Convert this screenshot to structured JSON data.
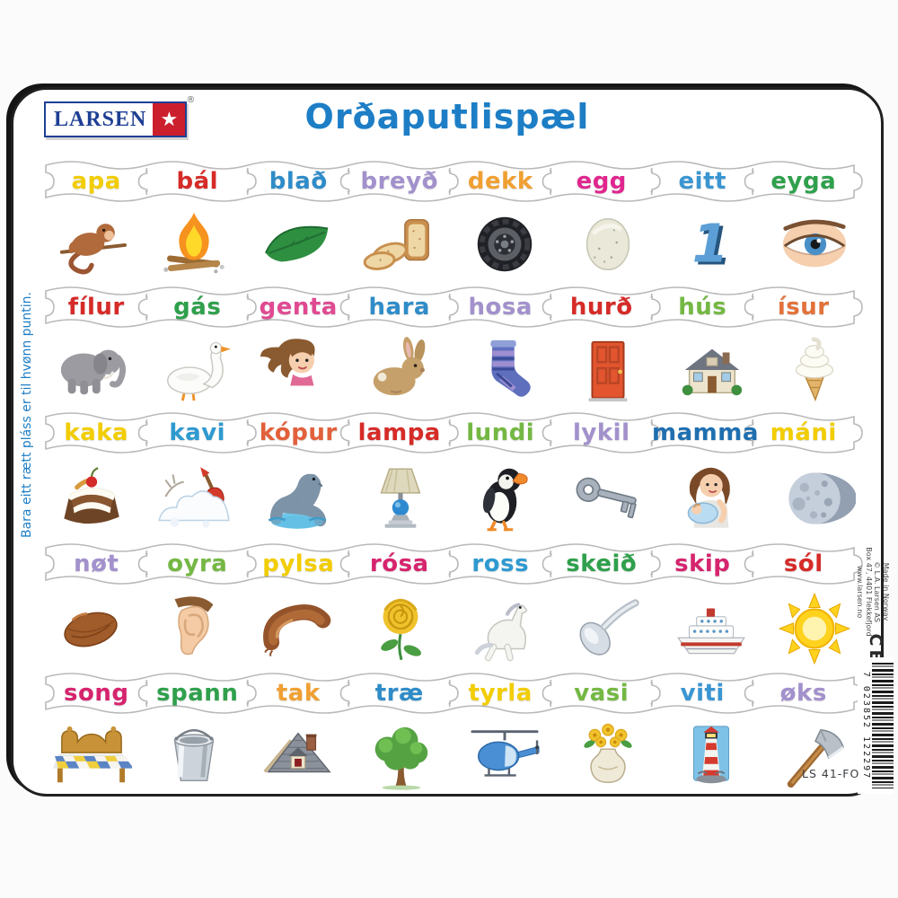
{
  "header": {
    "logo_text": "LARSEN",
    "logo_star": "★",
    "logo_reg": "®",
    "title": "Orðaputlispæl"
  },
  "side_left": {
    "text": "Bara eitt rætt pláss er til hvønn puntin."
  },
  "side_right": {
    "lines": [
      "Made in Norway",
      "© L.A. Larsen AS",
      "Box 47, 4401 Flekkefjord",
      "www.larsen.no"
    ],
    "ce": "CE",
    "barcode": "7 023852 122297",
    "product_code": "LS 41-FO"
  },
  "colors": {
    "title_blue": "#1d7ec6",
    "instruction_blue": "#1d7ec6",
    "logo_blue": "#1d3f94",
    "logo_red": "#cc1f2d",
    "board_border": "#202020",
    "piece_outline": "#b9b9b9"
  },
  "rows": [
    {
      "pieces": [
        {
          "word": "apa",
          "color": "#f2cd00",
          "icon": "monkey-icon"
        },
        {
          "word": "bál",
          "color": "#d62b28",
          "icon": "fire-icon"
        },
        {
          "word": "blað",
          "color": "#2f8cc8",
          "icon": "leaf-icon"
        },
        {
          "word": "breyð",
          "color": "#a291cc",
          "icon": "bread-icon"
        },
        {
          "word": "dekk",
          "color": "#f0a032",
          "icon": "tire-icon"
        },
        {
          "word": "egg",
          "color": "#e0268e",
          "icon": "egg-icon"
        },
        {
          "word": "eitt",
          "color": "#3a96d2",
          "icon": "one-icon"
        },
        {
          "word": "eyga",
          "color": "#2fa04c",
          "icon": "eye-icon"
        }
      ]
    },
    {
      "pieces": [
        {
          "word": "fílur",
          "color": "#d62b28",
          "icon": "elephant-icon"
        },
        {
          "word": "gás",
          "color": "#2fa04c",
          "icon": "goose-icon"
        },
        {
          "word": "genta",
          "color": "#e04a92",
          "icon": "girl-icon"
        },
        {
          "word": "hara",
          "color": "#2f8cc8",
          "icon": "rabbit-icon"
        },
        {
          "word": "hosa",
          "color": "#a291cc",
          "icon": "sock-icon"
        },
        {
          "word": "hurð",
          "color": "#d62b28",
          "icon": "door-icon"
        },
        {
          "word": "hús",
          "color": "#74b843",
          "icon": "house-icon"
        },
        {
          "word": "ísur",
          "color": "#e2713a",
          "icon": "icecream-icon"
        }
      ]
    },
    {
      "pieces": [
        {
          "word": "kaka",
          "color": "#f2cd00",
          "icon": "cake-icon"
        },
        {
          "word": "kavi",
          "color": "#2f9ad0",
          "icon": "snow-shovel-icon"
        },
        {
          "word": "kópur",
          "color": "#e2603a",
          "icon": "seal-icon"
        },
        {
          "word": "lampa",
          "color": "#d62b28",
          "icon": "lamp-icon"
        },
        {
          "word": "lundi",
          "color": "#74b843",
          "icon": "puffin-icon"
        },
        {
          "word": "lykil",
          "color": "#a291cc",
          "icon": "key-icon"
        },
        {
          "word": "mamma",
          "color": "#1f6fb0",
          "icon": "mother-icon"
        },
        {
          "word": "máni",
          "color": "#f2cd00",
          "icon": "moon-icon"
        }
      ]
    },
    {
      "pieces": [
        {
          "word": "nøt",
          "color": "#a291cc",
          "icon": "nut-icon"
        },
        {
          "word": "oyra",
          "color": "#74b843",
          "icon": "ear-icon"
        },
        {
          "word": "pylsa",
          "color": "#f2cd00",
          "icon": "sausage-icon"
        },
        {
          "word": "rósa",
          "color": "#d6246e",
          "icon": "rose-icon"
        },
        {
          "word": "ross",
          "color": "#2f9ad0",
          "icon": "horse-icon"
        },
        {
          "word": "skeið",
          "color": "#2fa04c",
          "icon": "spoon-icon"
        },
        {
          "word": "skip",
          "color": "#d6246e",
          "icon": "ship-icon"
        },
        {
          "word": "sól",
          "color": "#d62b28",
          "icon": "sun-icon"
        }
      ]
    },
    {
      "pieces": [
        {
          "word": "song",
          "color": "#d6246e",
          "icon": "bed-icon"
        },
        {
          "word": "spann",
          "color": "#2fa04c",
          "icon": "bucket-icon"
        },
        {
          "word": "tak",
          "color": "#f0a032",
          "icon": "roof-icon"
        },
        {
          "word": "træ",
          "color": "#2f8cc8",
          "icon": "tree-icon"
        },
        {
          "word": "tyrla",
          "color": "#f2cd00",
          "icon": "helicopter-icon"
        },
        {
          "word": "vasi",
          "color": "#74b843",
          "icon": "vase-icon"
        },
        {
          "word": "viti",
          "color": "#3a96d2",
          "icon": "lighthouse-icon"
        },
        {
          "word": "øks",
          "color": "#a291cc",
          "icon": "axe-icon"
        }
      ]
    }
  ]
}
